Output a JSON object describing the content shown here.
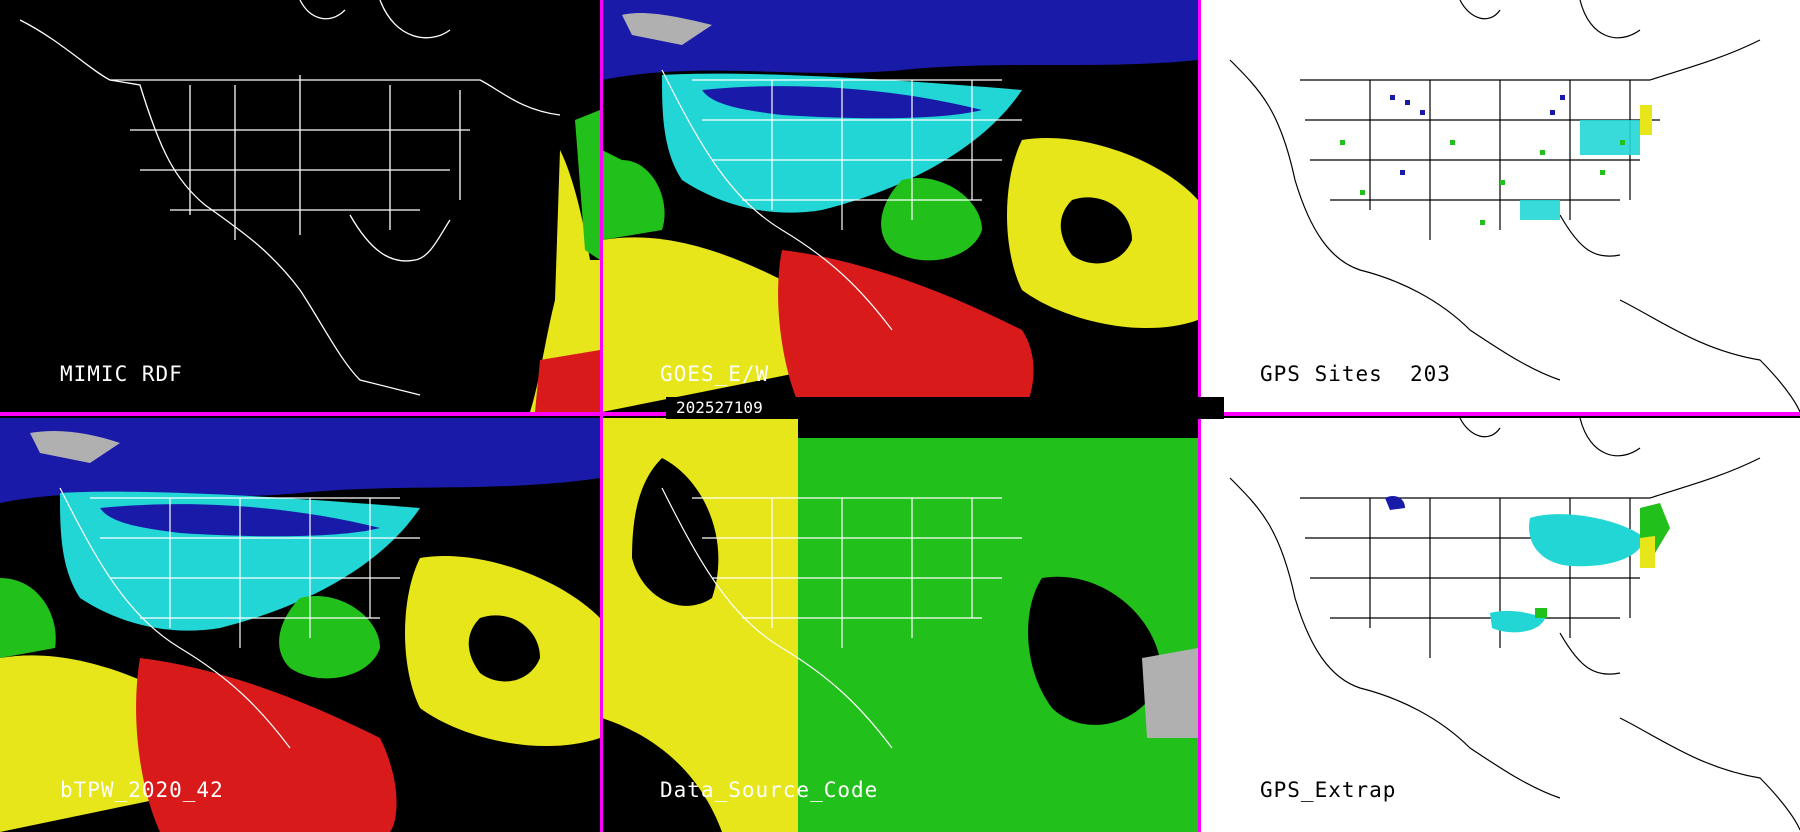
{
  "panels": {
    "mimic": {
      "label": "MIMIC RDF"
    },
    "goes": {
      "label": "GOES_E/W"
    },
    "gps_sites": {
      "label": "GPS Sites",
      "count": "203"
    },
    "btpw": {
      "label": "bTPW_2020_42"
    },
    "source": {
      "label": "Data_Source_Code"
    },
    "gps_extrap": {
      "label": "GPS_Extrap"
    }
  },
  "timestamp": "202527109",
  "colors": {
    "divider": "#ff00ff",
    "dark_bg": "#000000",
    "light_bg": "#ffffff",
    "blue": "#1a1aa8",
    "cyan": "#22d6d6",
    "green": "#22c01a",
    "yellow": "#e6e61a",
    "red": "#d81a1a",
    "gray": "#b0b0b0"
  }
}
